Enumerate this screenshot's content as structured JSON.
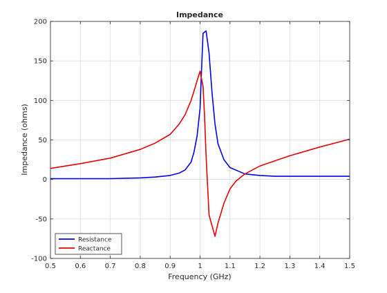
{
  "chart_data": {
    "type": "line",
    "title": "Impedance",
    "xlabel": "Frequency (GHz)",
    "ylabel": "Impedance (ohms)",
    "xlim": [
      0.5,
      1.5
    ],
    "ylim": [
      -100,
      200
    ],
    "xticks": [
      "0.5",
      "0.6",
      "0.7",
      "0.8",
      "0.9",
      "1",
      "1.1",
      "1.2",
      "1.3",
      "1.4",
      "1.5"
    ],
    "yticks": [
      "-100",
      "-50",
      "0",
      "50",
      "100",
      "150",
      "200"
    ],
    "grid": true,
    "legend_position": "bottom-left",
    "series": [
      {
        "name": "Resistance",
        "color": "#0000e6",
        "x": [
          0.5,
          0.6,
          0.7,
          0.8,
          0.85,
          0.9,
          0.93,
          0.95,
          0.97,
          0.98,
          0.99,
          1.0,
          1.005,
          1.01,
          1.02,
          1.03,
          1.04,
          1.05,
          1.06,
          1.08,
          1.1,
          1.15,
          1.2,
          1.25,
          1.3,
          1.4,
          1.5
        ],
        "y": [
          1,
          1,
          1,
          2,
          3,
          5,
          8,
          12,
          22,
          35,
          55,
          90,
          140,
          185,
          188,
          160,
          110,
          70,
          45,
          25,
          15,
          7,
          5,
          4,
          4,
          4,
          4
        ]
      },
      {
        "name": "Reactance",
        "color": "#e60000",
        "x": [
          0.5,
          0.6,
          0.7,
          0.8,
          0.85,
          0.9,
          0.93,
          0.95,
          0.97,
          0.98,
          0.99,
          1.0,
          1.01,
          1.015,
          1.02,
          1.03,
          1.05,
          1.06,
          1.08,
          1.1,
          1.12,
          1.15,
          1.2,
          1.3,
          1.4,
          1.5
        ],
        "y": [
          14,
          20,
          27,
          38,
          46,
          57,
          70,
          82,
          100,
          112,
          125,
          137,
          118,
          80,
          30,
          -45,
          -72,
          -55,
          -30,
          -12,
          -2,
          7,
          17,
          30,
          41,
          51
        ]
      }
    ]
  }
}
